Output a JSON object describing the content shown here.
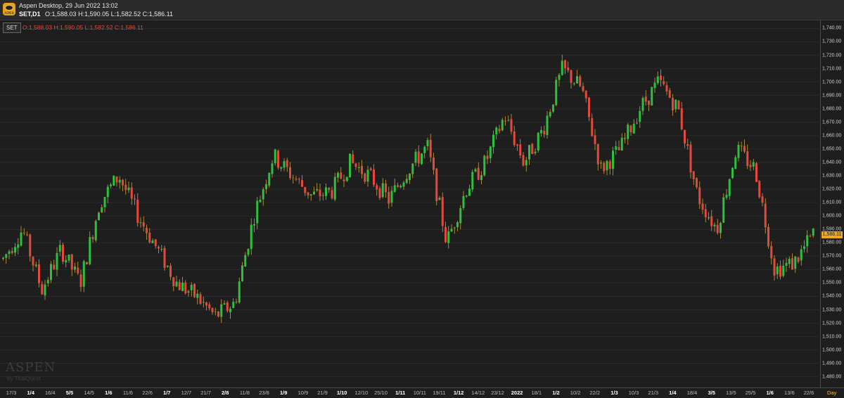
{
  "window": {
    "title": "Aspen Desktop, 29 Jun 2022 13:02",
    "symbol_timeframe": "SET,D1",
    "ohlc": "O:1,588.03 H:1,590.05 L:1,582.52 C:1,586.11",
    "app_icon_text": "ASPEN"
  },
  "legend": {
    "symbol": "SET",
    "ohlc": "O:1,588.03 H:1,590.05 L:1,582.52 C:1,586.11"
  },
  "colors": {
    "up": "#2fbf3f",
    "down": "#e34a3c",
    "background": "#1e1e1e",
    "grid": "#2b2b2b",
    "last_price": "#f0a81a"
  },
  "watermark": {
    "brand": "ASPEN",
    "by": "by ThaiQuest"
  },
  "time_axis": {
    "period": "Day",
    "labels": [
      {
        "text": "17/3",
        "major": false
      },
      {
        "text": "1/4",
        "major": true
      },
      {
        "text": "16/4",
        "major": false
      },
      {
        "text": "5/5",
        "major": true
      },
      {
        "text": "14/5",
        "major": false
      },
      {
        "text": "1/6",
        "major": true
      },
      {
        "text": "11/6",
        "major": false
      },
      {
        "text": "22/6",
        "major": false
      },
      {
        "text": "1/7",
        "major": true
      },
      {
        "text": "12/7",
        "major": false
      },
      {
        "text": "21/7",
        "major": false
      },
      {
        "text": "2/8",
        "major": true
      },
      {
        "text": "11/8",
        "major": false
      },
      {
        "text": "23/8",
        "major": false
      },
      {
        "text": "1/9",
        "major": true
      },
      {
        "text": "10/9",
        "major": false
      },
      {
        "text": "21/9",
        "major": false
      },
      {
        "text": "1/10",
        "major": true
      },
      {
        "text": "12/10",
        "major": false
      },
      {
        "text": "25/10",
        "major": false
      },
      {
        "text": "1/11",
        "major": true
      },
      {
        "text": "10/11",
        "major": false
      },
      {
        "text": "19/11",
        "major": false
      },
      {
        "text": "1/12",
        "major": true
      },
      {
        "text": "14/12",
        "major": false
      },
      {
        "text": "23/12",
        "major": false
      },
      {
        "text": "2022",
        "major": true
      },
      {
        "text": "18/1",
        "major": false
      },
      {
        "text": "1/2",
        "major": true
      },
      {
        "text": "10/2",
        "major": false
      },
      {
        "text": "22/2",
        "major": false
      },
      {
        "text": "1/3",
        "major": true
      },
      {
        "text": "10/3",
        "major": false
      },
      {
        "text": "21/3",
        "major": false
      },
      {
        "text": "1/4",
        "major": true
      },
      {
        "text": "18/4",
        "major": false
      },
      {
        "text": "3/5",
        "major": true
      },
      {
        "text": "13/5",
        "major": false
      },
      {
        "text": "25/5",
        "major": false
      },
      {
        "text": "1/6",
        "major": true
      },
      {
        "text": "13/6",
        "major": false
      },
      {
        "text": "22/6",
        "major": false
      }
    ]
  },
  "chart_data": {
    "type": "candlestick",
    "symbol": "SET",
    "timeframe": "D1",
    "last_close": "1,586.11",
    "ylim": [
      1472,
      1746
    ],
    "y_ticks": [
      "1,740.00",
      "1,730.00",
      "1,720.00",
      "1,710.00",
      "1,700.00",
      "1,690.00",
      "1,680.00",
      "1,670.00",
      "1,660.00",
      "1,650.00",
      "1,640.00",
      "1,630.00",
      "1,620.00",
      "1,610.00",
      "1,600.00",
      "1,590.00",
      "1,580.00",
      "1,570.00",
      "1,560.00",
      "1,550.00",
      "1,540.00",
      "1,530.00",
      "1,520.00",
      "1,510.00",
      "1,500.00",
      "1,490.00",
      "1,480.00"
    ],
    "approx_close_path": [
      {
        "date": "17/3/2021",
        "close": 1568
      },
      {
        "date": "1/4/2021",
        "close": 1590
      },
      {
        "date": "16/4/2021",
        "close": 1545
      },
      {
        "date": "5/5/2021",
        "close": 1575
      },
      {
        "date": "14/5/2021",
        "close": 1550
      },
      {
        "date": "1/6/2021",
        "close": 1610
      },
      {
        "date": "11/6/2021",
        "close": 1630
      },
      {
        "date": "22/6/2021",
        "close": 1600
      },
      {
        "date": "1/7/2021",
        "close": 1575
      },
      {
        "date": "12/7/2021",
        "close": 1550
      },
      {
        "date": "21/7/2021",
        "close": 1540
      },
      {
        "date": "2/8/2021",
        "close": 1525
      },
      {
        "date": "11/8/2021",
        "close": 1535
      },
      {
        "date": "23/8/2021",
        "close": 1600
      },
      {
        "date": "1/9/2021",
        "close": 1645
      },
      {
        "date": "10/9/2021",
        "close": 1630
      },
      {
        "date": "21/9/2021",
        "close": 1615
      },
      {
        "date": "1/10/2021",
        "close": 1618
      },
      {
        "date": "12/10/2021",
        "close": 1640
      },
      {
        "date": "25/10/2021",
        "close": 1630
      },
      {
        "date": "1/11/2021",
        "close": 1612
      },
      {
        "date": "10/11/2021",
        "close": 1635
      },
      {
        "date": "19/11/2021",
        "close": 1652
      },
      {
        "date": "1/12/2021",
        "close": 1580
      },
      {
        "date": "14/12/2021",
        "close": 1620
      },
      {
        "date": "23/12/2021",
        "close": 1640
      },
      {
        "date": "4/1/2022",
        "close": 1675
      },
      {
        "date": "18/1/2022",
        "close": 1640
      },
      {
        "date": "1/2/2022",
        "close": 1665
      },
      {
        "date": "10/2/2022",
        "close": 1710
      },
      {
        "date": "22/2/2022",
        "close": 1695
      },
      {
        "date": "1/3/2022",
        "close": 1635
      },
      {
        "date": "10/3/2022",
        "close": 1650
      },
      {
        "date": "21/3/2022",
        "close": 1680
      },
      {
        "date": "1/4/2022",
        "close": 1700
      },
      {
        "date": "18/4/2022",
        "close": 1680
      },
      {
        "date": "3/5/2022",
        "close": 1615
      },
      {
        "date": "13/5/2022",
        "close": 1590
      },
      {
        "date": "25/5/2022",
        "close": 1650
      },
      {
        "date": "1/6/2022",
        "close": 1635
      },
      {
        "date": "13/6/2022",
        "close": 1560
      },
      {
        "date": "22/6/2022",
        "close": 1565
      },
      {
        "date": "29/6/2022",
        "close": 1586.11
      }
    ]
  }
}
